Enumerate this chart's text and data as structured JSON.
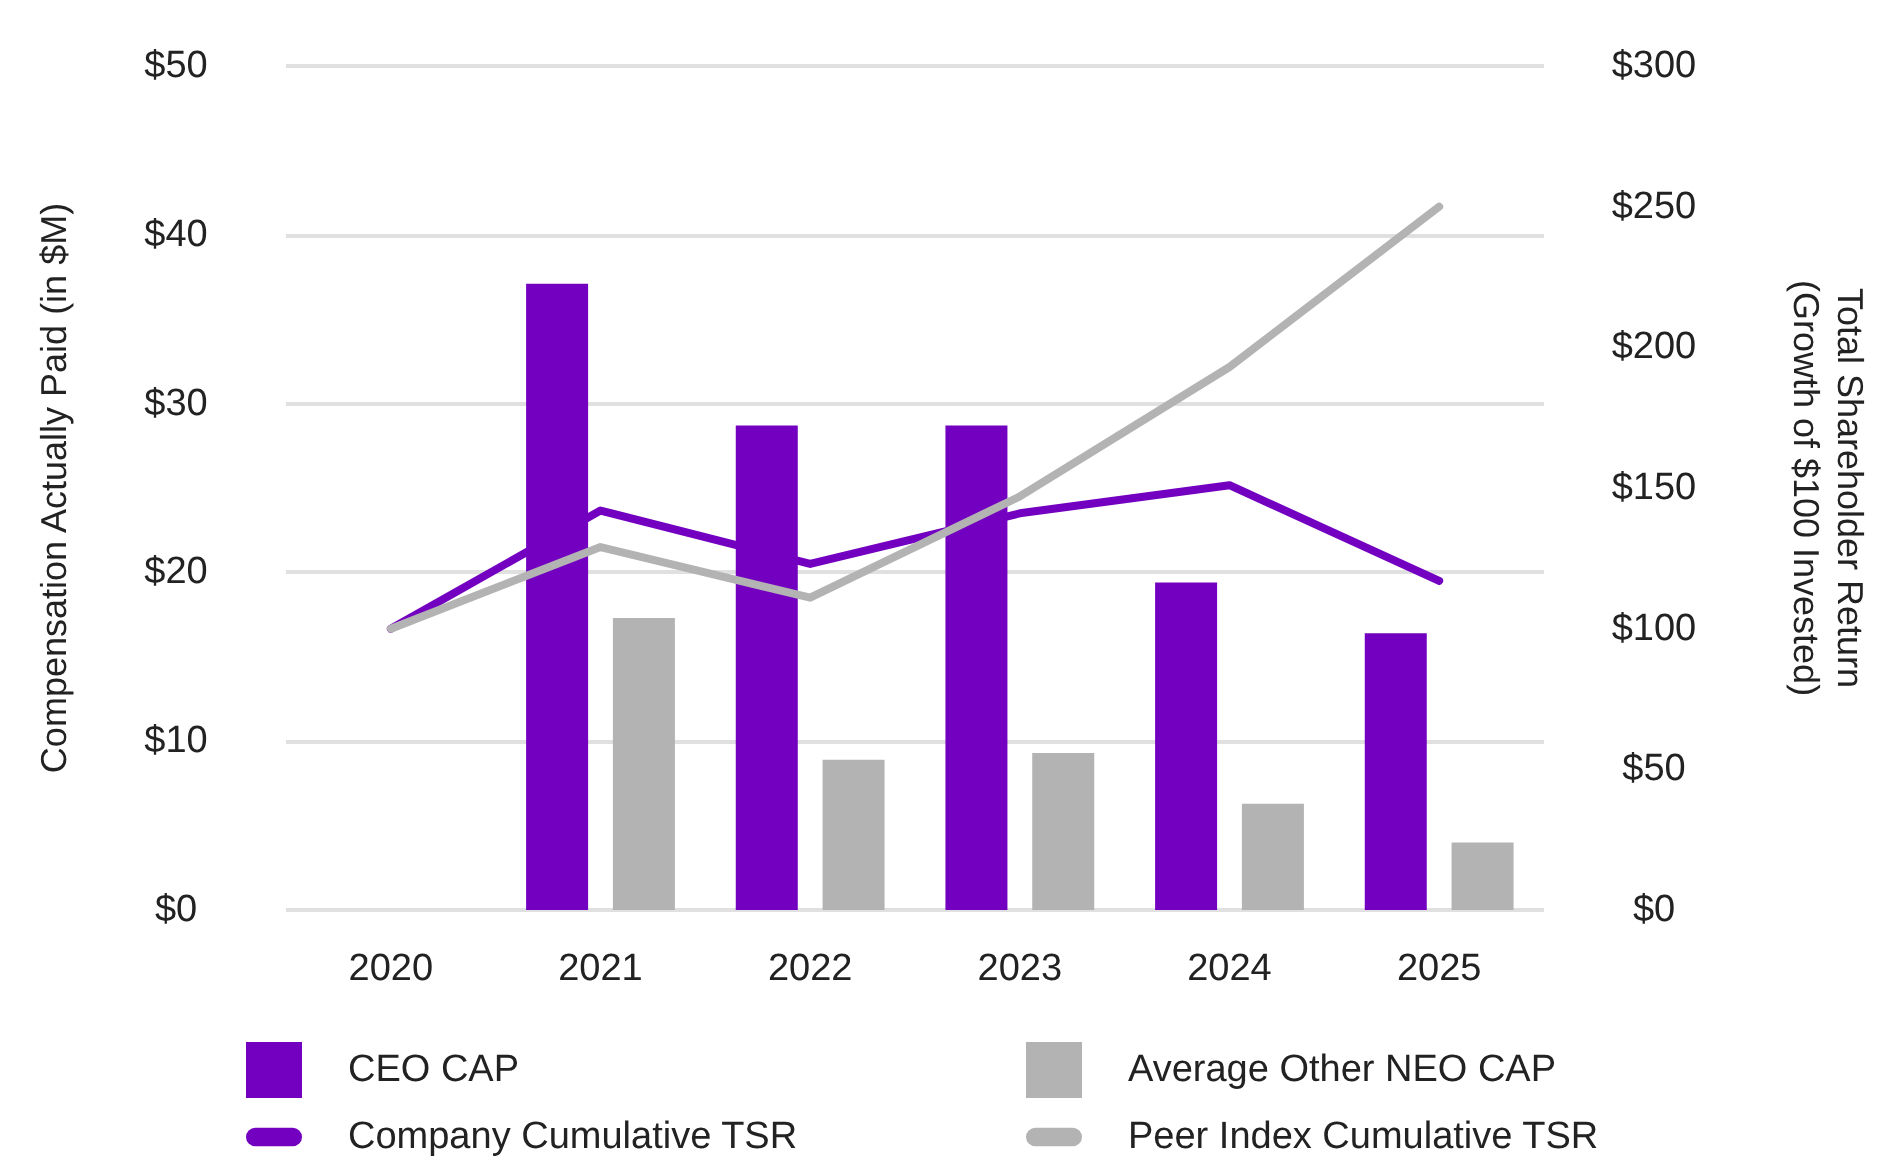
{
  "chart_data": {
    "type": "bar",
    "categories": [
      "2020",
      "2021",
      "2022",
      "2023",
      "2024",
      "2025"
    ],
    "ylabel": "Compensation Actually Paid (in $M)",
    "y2label": "Total Shareholder Return\n(Growth of $100 Invested)",
    "ylim": [
      0,
      50
    ],
    "yticks": [
      {
        "value": 0,
        "label": "$0"
      },
      {
        "value": 10,
        "label": "$10"
      },
      {
        "value": 20,
        "label": "$20"
      },
      {
        "value": 30,
        "label": "$30"
      },
      {
        "value": 40,
        "label": "$40"
      },
      {
        "value": 50,
        "label": "$50"
      }
    ],
    "y2lim": [
      0,
      300
    ],
    "y2ticks": [
      {
        "value": 0,
        "label": "$0"
      },
      {
        "value": 50,
        "label": "$50"
      },
      {
        "value": 100,
        "label": "$100"
      },
      {
        "value": 150,
        "label": "$150"
      },
      {
        "value": 200,
        "label": "$200"
      },
      {
        "value": 250,
        "label": "$250"
      },
      {
        "value": 300,
        "label": "$300"
      }
    ],
    "grid": "y",
    "legend": "bottom",
    "series": [
      {
        "name": "CEO CAP",
        "color": "#7300c0",
        "values": [
          null,
          37.1,
          28.7,
          28.7,
          19.4,
          16.4
        ]
      },
      {
        "name": "Average Other NEO CAP",
        "color": "#b3b3b3",
        "values": [
          null,
          17.3,
          8.9,
          9.3,
          6.3,
          4.0
        ]
      },
      {
        "name": "Company Cumulative TSR",
        "type": "line",
        "axis": "y2",
        "color": "#7300c0",
        "values": [
          100,
          142,
          123,
          141,
          151,
          117
        ]
      },
      {
        "name": "Peer Index Cumulative TSR",
        "type": "line",
        "axis": "y2",
        "color": "#b3b3b3",
        "values": [
          100,
          129,
          111,
          147,
          193,
          250
        ]
      }
    ]
  }
}
